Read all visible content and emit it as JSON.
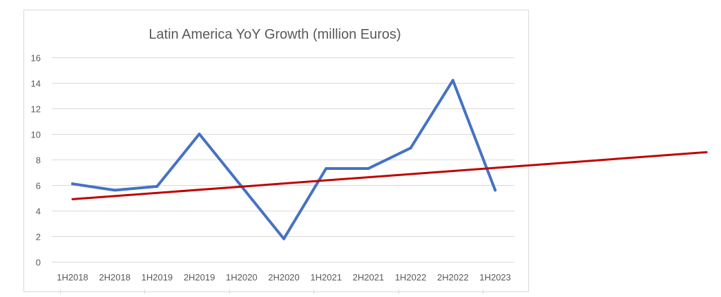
{
  "chart_data": {
    "type": "line",
    "title": "Latin America YoY Growth (million Euros)",
    "xlabel": "",
    "ylabel": "",
    "categories": [
      "1H2018",
      "2H2018",
      "1H2019",
      "2H2019",
      "1H2020",
      "2H2020",
      "1H2021",
      "2H2021",
      "1H2022",
      "2H2022",
      "1H2023"
    ],
    "yticks": [
      "0",
      "2",
      "4",
      "6",
      "8",
      "10",
      "12",
      "14",
      "16"
    ],
    "ylim": [
      0,
      16
    ],
    "grid": true,
    "legend": "none",
    "series": [
      {
        "values": [
          6.1,
          5.6,
          5.9,
          10.0,
          5.9,
          1.8,
          7.3,
          7.3,
          8.9,
          14.2,
          5.6
        ],
        "color": "#4472C4"
      }
    ],
    "trendline": {
      "type": "linear",
      "start_value": 4.9,
      "slope_per_category": 0.245,
      "extends_past_last_category": true,
      "color": "#C00000"
    }
  }
}
